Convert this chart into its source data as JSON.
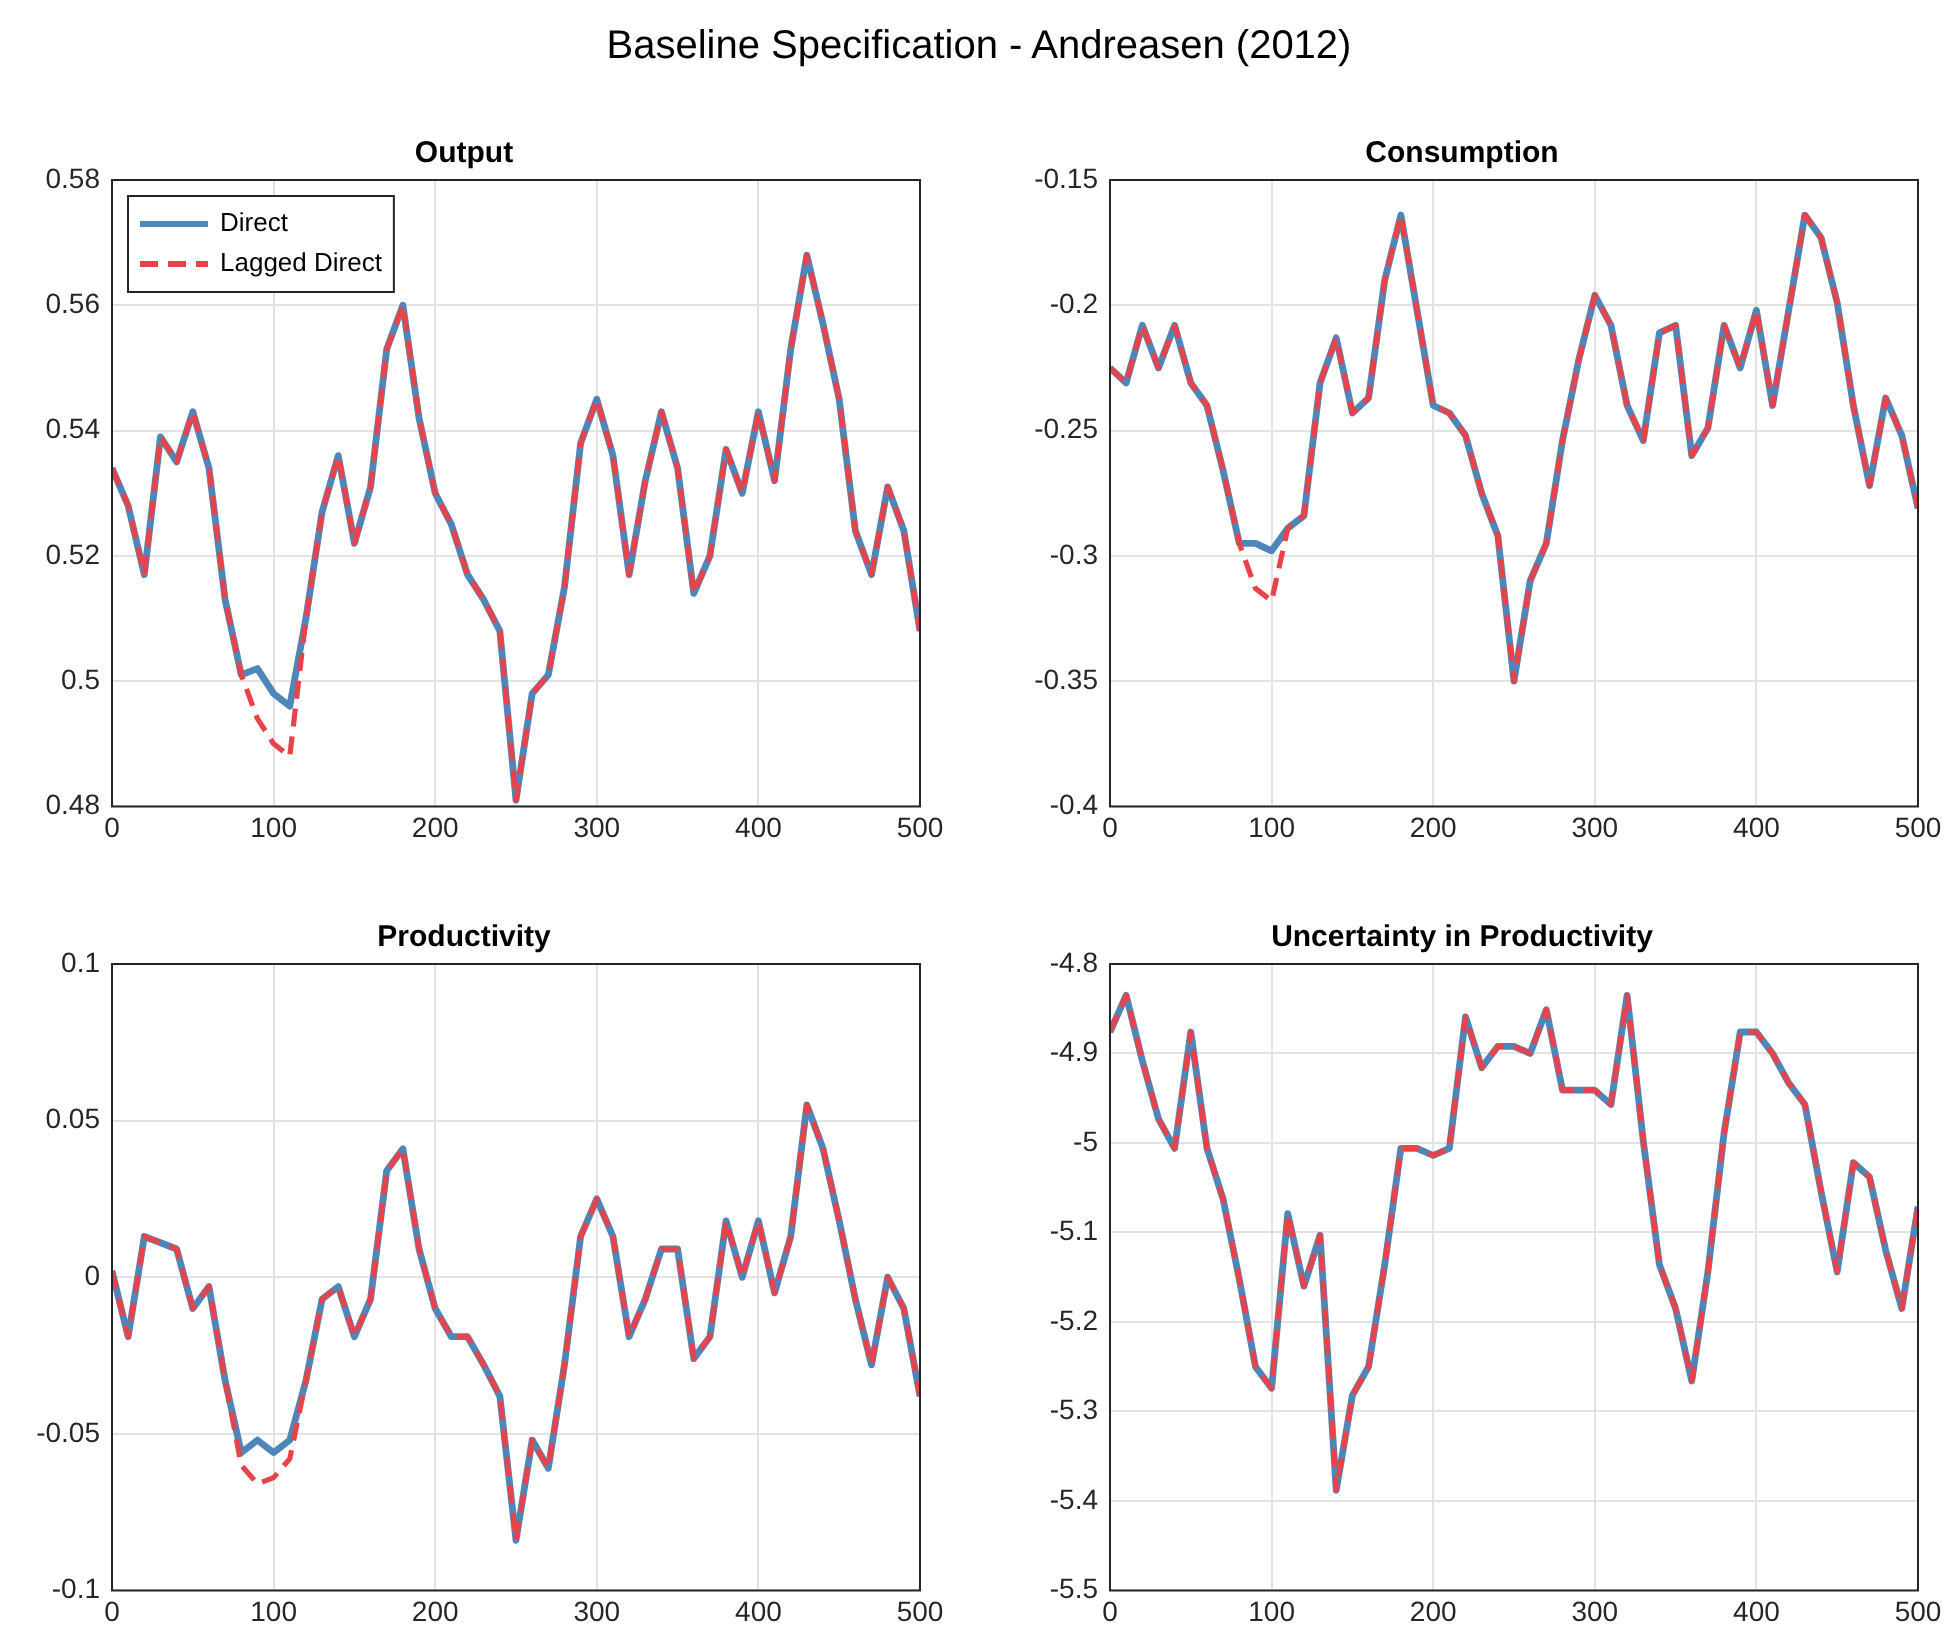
{
  "chart_data": [
    {
      "type": "line",
      "title": "Output",
      "annotations": [
        "Baseline Specification - Andreasen (2012)"
      ],
      "legend": "top left",
      "grid": true,
      "xlim": [
        0,
        500
      ],
      "xticks": [
        0,
        100,
        200,
        300,
        400,
        500
      ],
      "ylim": [
        0.48,
        0.58
      ],
      "yticks": [
        {
          "value": 0.48,
          "label": "0.48"
        },
        {
          "value": 0.5,
          "label": "0.5"
        },
        {
          "value": 0.52,
          "label": "0.52"
        },
        {
          "value": 0.54,
          "label": "0.54"
        },
        {
          "value": 0.56,
          "label": "0.56"
        },
        {
          "value": 0.58,
          "label": "0.58"
        }
      ],
      "x": [
        0,
        10,
        20,
        30,
        40,
        50,
        60,
        70,
        80,
        90,
        100,
        110,
        120,
        130,
        140,
        150,
        160,
        170,
        180,
        190,
        200,
        210,
        220,
        230,
        240,
        250,
        260,
        270,
        280,
        290,
        300,
        310,
        320,
        330,
        340,
        350,
        360,
        370,
        380,
        390,
        400,
        410,
        420,
        430,
        440,
        450,
        460,
        470,
        480,
        490,
        500
      ],
      "series": [
        {
          "name": "Direct",
          "color": "#4f86b8",
          "line_style": "solid",
          "values": [
            0.534,
            0.528,
            0.517,
            0.539,
            0.535,
            0.543,
            0.534,
            0.513,
            0.501,
            0.502,
            0.498,
            0.496,
            0.51,
            0.527,
            0.536,
            0.522,
            0.531,
            0.553,
            0.56,
            0.542,
            0.53,
            0.525,
            0.517,
            0.513,
            0.508,
            0.481,
            0.498,
            0.501,
            0.515,
            0.538,
            0.545,
            0.536,
            0.517,
            0.532,
            0.543,
            0.534,
            0.514,
            0.52,
            0.537,
            0.53,
            0.543,
            0.532,
            0.553,
            0.568,
            0.557,
            0.545,
            0.524,
            0.517,
            0.531,
            0.524,
            0.508
          ]
        },
        {
          "name": "Lagged Direct",
          "color": "#e8434a",
          "line_style": "dashed",
          "values": [
            0.534,
            0.528,
            0.517,
            0.539,
            0.535,
            0.543,
            0.534,
            0.513,
            0.501,
            0.494,
            0.49,
            0.488,
            0.51,
            0.527,
            0.536,
            0.522,
            0.531,
            0.553,
            0.56,
            0.542,
            0.53,
            0.525,
            0.517,
            0.513,
            0.508,
            0.481,
            0.498,
            0.501,
            0.515,
            0.538,
            0.545,
            0.536,
            0.517,
            0.532,
            0.543,
            0.534,
            0.514,
            0.52,
            0.537,
            0.53,
            0.543,
            0.532,
            0.553,
            0.568,
            0.557,
            0.545,
            0.524,
            0.517,
            0.531,
            0.524,
            0.508
          ]
        }
      ]
    },
    {
      "type": "line",
      "title": "Consumption",
      "legend": false,
      "grid": true,
      "xlim": [
        0,
        500
      ],
      "xticks": [
        0,
        100,
        200,
        300,
        400,
        500
      ],
      "ylim": [
        -0.4,
        -0.15
      ],
      "yticks": [
        {
          "value": -0.4,
          "label": "-0.4"
        },
        {
          "value": -0.35,
          "label": "-0.35"
        },
        {
          "value": -0.3,
          "label": "-0.3"
        },
        {
          "value": -0.25,
          "label": "-0.25"
        },
        {
          "value": -0.2,
          "label": "-0.2"
        },
        {
          "value": -0.15,
          "label": "-0.15"
        }
      ],
      "x": [
        0,
        10,
        20,
        30,
        40,
        50,
        60,
        70,
        80,
        90,
        100,
        110,
        120,
        130,
        140,
        150,
        160,
        170,
        180,
        190,
        200,
        210,
        220,
        230,
        240,
        250,
        260,
        270,
        280,
        290,
        300,
        310,
        320,
        330,
        340,
        350,
        360,
        370,
        380,
        390,
        400,
        410,
        420,
        430,
        440,
        450,
        460,
        470,
        480,
        490,
        500
      ],
      "series": [
        {
          "color": "#4f86b8",
          "line_style": "solid",
          "values": [
            -0.225,
            -0.231,
            -0.208,
            -0.225,
            -0.208,
            -0.231,
            -0.24,
            -0.266,
            -0.295,
            -0.295,
            -0.298,
            -0.289,
            -0.284,
            -0.231,
            -0.213,
            -0.243,
            -0.237,
            -0.19,
            -0.164,
            -0.202,
            -0.24,
            -0.243,
            -0.252,
            -0.275,
            -0.292,
            -0.35,
            -0.31,
            -0.295,
            -0.254,
            -0.222,
            -0.196,
            -0.208,
            -0.24,
            -0.254,
            -0.211,
            -0.208,
            -0.26,
            -0.249,
            -0.208,
            -0.225,
            -0.202,
            -0.24,
            -0.202,
            -0.164,
            -0.173,
            -0.199,
            -0.24,
            -0.272,
            -0.237,
            -0.252,
            -0.281
          ]
        },
        {
          "color": "#e8434a",
          "line_style": "dashed",
          "values": [
            -0.225,
            -0.231,
            -0.208,
            -0.225,
            -0.208,
            -0.231,
            -0.24,
            -0.266,
            -0.295,
            -0.313,
            -0.318,
            -0.289,
            -0.284,
            -0.231,
            -0.213,
            -0.243,
            -0.237,
            -0.19,
            -0.164,
            -0.202,
            -0.24,
            -0.243,
            -0.252,
            -0.275,
            -0.292,
            -0.35,
            -0.31,
            -0.295,
            -0.254,
            -0.222,
            -0.196,
            -0.208,
            -0.24,
            -0.254,
            -0.211,
            -0.208,
            -0.26,
            -0.249,
            -0.208,
            -0.225,
            -0.202,
            -0.24,
            -0.202,
            -0.164,
            -0.173,
            -0.199,
            -0.24,
            -0.272,
            -0.237,
            -0.252,
            -0.281
          ]
        }
      ]
    },
    {
      "type": "line",
      "title": "Productivity",
      "legend": false,
      "grid": true,
      "xlim": [
        0,
        500
      ],
      "xticks": [
        0,
        100,
        200,
        300,
        400,
        500
      ],
      "ylim": [
        -0.1,
        0.1
      ],
      "yticks": [
        {
          "value": -0.1,
          "label": "-0.1"
        },
        {
          "value": -0.05,
          "label": "-0.05"
        },
        {
          "value": 0,
          "label": "0"
        },
        {
          "value": 0.05,
          "label": "0.05"
        },
        {
          "value": 0.1,
          "label": "0.1"
        }
      ],
      "x": [
        0,
        10,
        20,
        30,
        40,
        50,
        60,
        70,
        80,
        90,
        100,
        110,
        120,
        130,
        140,
        150,
        160,
        170,
        180,
        190,
        200,
        210,
        220,
        230,
        240,
        250,
        260,
        270,
        280,
        290,
        300,
        310,
        320,
        330,
        340,
        350,
        360,
        370,
        380,
        390,
        400,
        410,
        420,
        430,
        440,
        450,
        460,
        470,
        480,
        490,
        500
      ],
      "series": [
        {
          "color": "#4f86b8",
          "line_style": "solid",
          "values": [
            0.002,
            -0.019,
            0.013,
            0.011,
            0.009,
            -0.01,
            -0.003,
            -0.033,
            -0.056,
            -0.052,
            -0.056,
            -0.052,
            -0.033,
            -0.007,
            -0.003,
            -0.019,
            -0.007,
            0.034,
            0.041,
            0.009,
            -0.01,
            -0.019,
            -0.019,
            -0.028,
            -0.038,
            -0.084,
            -0.052,
            -0.061,
            -0.028,
            0.013,
            0.025,
            0.013,
            -0.019,
            -0.007,
            0.009,
            0.009,
            -0.026,
            -0.019,
            0.018,
            0,
            0.018,
            -0.005,
            0.013,
            0.055,
            0.041,
            0.018,
            -0.007,
            -0.028,
            0,
            -0.01,
            -0.038
          ]
        },
        {
          "color": "#e8434a",
          "line_style": "dashed",
          "values": [
            0.002,
            -0.019,
            0.013,
            0.011,
            0.009,
            -0.01,
            -0.003,
            -0.033,
            -0.06,
            -0.066,
            -0.064,
            -0.058,
            -0.033,
            -0.007,
            -0.003,
            -0.019,
            -0.007,
            0.034,
            0.041,
            0.009,
            -0.01,
            -0.019,
            -0.019,
            -0.028,
            -0.038,
            -0.084,
            -0.052,
            -0.061,
            -0.028,
            0.013,
            0.025,
            0.013,
            -0.019,
            -0.007,
            0.009,
            0.009,
            -0.026,
            -0.019,
            0.018,
            0,
            0.018,
            -0.005,
            0.013,
            0.055,
            0.041,
            0.018,
            -0.007,
            -0.028,
            0,
            -0.01,
            -0.038
          ]
        }
      ]
    },
    {
      "type": "line",
      "title": "Uncertainty in Productivity",
      "legend": false,
      "grid": true,
      "xlim": [
        0,
        500
      ],
      "xticks": [
        0,
        100,
        200,
        300,
        400,
        500
      ],
      "ylim": [
        -5.5,
        -4.8
      ],
      "yticks": [
        {
          "value": -5.5,
          "label": "-5.5"
        },
        {
          "value": -5.4,
          "label": "-5.4"
        },
        {
          "value": -5.3,
          "label": "-5.3"
        },
        {
          "value": -5.2,
          "label": "-5.2"
        },
        {
          "value": -5.1,
          "label": "-5.1"
        },
        {
          "value": -5,
          "label": "-5"
        },
        {
          "value": -4.9,
          "label": "-4.9"
        },
        {
          "value": -4.8,
          "label": "-4.8"
        }
      ],
      "x": [
        0,
        10,
        20,
        30,
        40,
        50,
        60,
        70,
        80,
        90,
        100,
        110,
        120,
        130,
        140,
        150,
        160,
        170,
        180,
        190,
        200,
        210,
        220,
        230,
        240,
        250,
        260,
        270,
        280,
        290,
        300,
        310,
        320,
        330,
        340,
        350,
        360,
        370,
        380,
        390,
        400,
        410,
        420,
        430,
        440,
        450,
        460,
        470,
        480,
        490,
        500
      ],
      "series": [
        {
          "color": "#4f86b8",
          "line_style": "solid",
          "values": [
            -4.876,
            -4.835,
            -4.908,
            -4.973,
            -5.006,
            -4.876,
            -5.006,
            -5.063,
            -5.152,
            -5.25,
            -5.274,
            -5.079,
            -5.16,
            -5.103,
            -5.388,
            -5.282,
            -5.25,
            -5.136,
            -5.006,
            -5.006,
            -5.014,
            -5.006,
            -4.859,
            -4.916,
            -4.892,
            -4.892,
            -4.9,
            -4.851,
            -4.941,
            -4.941,
            -4.941,
            -4.957,
            -4.835,
            -4.998,
            -5.136,
            -5.185,
            -5.266,
            -5.144,
            -4.989,
            -4.876,
            -4.876,
            -4.9,
            -4.933,
            -4.957,
            -5.054,
            -5.144,
            -5.022,
            -5.038,
            -5.12,
            -5.185,
            -5.071
          ]
        },
        {
          "color": "#e8434a",
          "line_style": "dashed",
          "values": [
            -4.876,
            -4.835,
            -4.908,
            -4.973,
            -5.006,
            -4.876,
            -5.006,
            -5.063,
            -5.152,
            -5.25,
            -5.274,
            -5.079,
            -5.16,
            -5.103,
            -5.388,
            -5.282,
            -5.25,
            -5.136,
            -5.006,
            -5.006,
            -5.014,
            -5.006,
            -4.859,
            -4.916,
            -4.892,
            -4.892,
            -4.9,
            -4.851,
            -4.941,
            -4.941,
            -4.941,
            -4.957,
            -4.835,
            -4.998,
            -5.136,
            -5.185,
            -5.266,
            -5.144,
            -4.989,
            -4.876,
            -4.876,
            -4.9,
            -4.933,
            -4.957,
            -5.054,
            -5.144,
            -5.022,
            -5.038,
            -5.12,
            -5.185,
            -5.071
          ]
        }
      ]
    }
  ]
}
